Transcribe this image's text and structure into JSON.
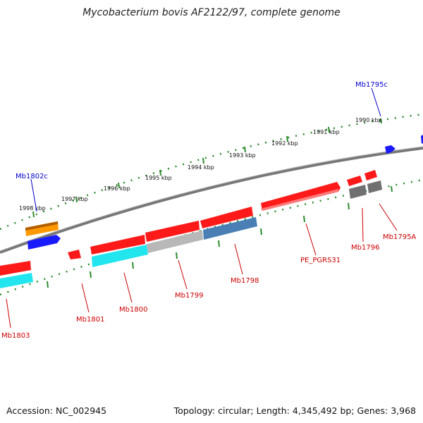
{
  "title": "Mycobacterium bovis AF2122/97, complete genome",
  "accession": "Accession: NC_002945",
  "topology": "Topology: circular; Length: 4,345,492 bp; Genes: 3,968",
  "kbp_labels": [
    "1990 kbp",
    "1991 kbp",
    "1992 kbp",
    "1993 kbp",
    "1994 kbp",
    "1995 kbp",
    "1996 kbp",
    "1997 kbp",
    "1998 kbp"
  ],
  "gene_labels": [
    "Mb1795c",
    "Mb1802c",
    "Mb1795A",
    "Mb1796",
    "PE_PGRS31",
    "Mb1798",
    "Mb1799",
    "Mb1800",
    "Mb1801",
    "Mb1803"
  ],
  "colors": {
    "backbone": "#808080",
    "tick": "#2e8b2e",
    "forward_cds": "#ff1a1a",
    "reverse_cds": "#1a1aff",
    "orange_feature": "#ff9900",
    "cyan_feature": "#22e5ee",
    "grey_feature": "#b0b0b0",
    "steelblue_feature": "#4a7fb5",
    "dark_grey_feature": "#707070",
    "label_forward": "#cc0000",
    "label_reverse": "#0000cc"
  }
}
